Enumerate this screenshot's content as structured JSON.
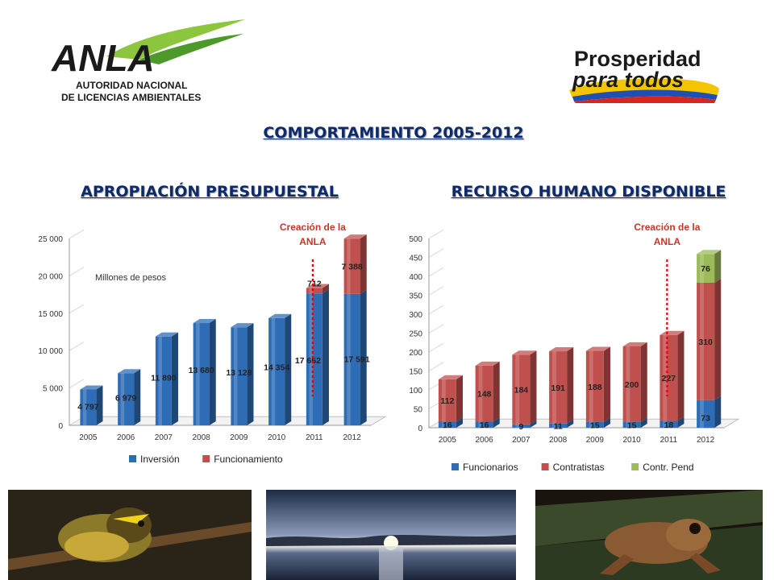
{
  "logos": {
    "anla": {
      "wordmark": "ANLA",
      "line1": "AUTORIDAD NACIONAL",
      "line2": "DE LICENCIAS AMBIENTALES"
    },
    "prosperidad": {
      "line1": "Prosperidad",
      "line2": "para todos"
    }
  },
  "header": {
    "title": "COMPORTAMIENTO 2005-2012"
  },
  "colors": {
    "blue": "#2e6db6",
    "red": "#c0504d",
    "green": "#9bbb59",
    "title": "#0d2a6b",
    "annotation": "#c0392b"
  },
  "chart_data": [
    {
      "type": "bar",
      "stacked": true,
      "title": "APROPIACIÓN PRESUPUESTAL",
      "annotation_text": "Millones de pesos",
      "marker_label": "Creación de la ANLA",
      "marker_category": "2011",
      "categories": [
        "2005",
        "2006",
        "2007",
        "2008",
        "2009",
        "2010",
        "2011",
        "2012"
      ],
      "series": [
        {
          "name": "Inversión",
          "color": "#2e6db6",
          "values": [
            4797,
            6979,
            11890,
            13680,
            13128,
            14354,
            17652,
            17591
          ],
          "labels": [
            "4 797",
            "6 979",
            "11 890",
            "13 680",
            "13 128",
            "14 354",
            "17 652",
            "17 591"
          ]
        },
        {
          "name": "Funcionamiento",
          "color": "#c0504d",
          "values": [
            0,
            0,
            0,
            0,
            0,
            0,
            712,
            7388
          ],
          "labels": [
            "",
            "",
            "",
            "",
            "",
            "",
            "712",
            "7 388"
          ]
        }
      ],
      "ylim": [
        0,
        25000
      ],
      "yticks": [
        0,
        5000,
        10000,
        15000,
        20000,
        25000
      ],
      "ytick_labels": [
        "0",
        "5 000",
        "10 000",
        "15 000",
        "20 000",
        "25 000"
      ],
      "legend": "bottom"
    },
    {
      "type": "bar",
      "stacked": true,
      "title": "RECURSO HUMANO DISPONIBLE",
      "marker_label": "Creación de la ANLA",
      "marker_category": "2011",
      "categories": [
        "2005",
        "2006",
        "2007",
        "2008",
        "2009",
        "2010",
        "2011",
        "2012"
      ],
      "series": [
        {
          "name": "Funcionarios",
          "color": "#2e6db6",
          "values": [
            16,
            16,
            9,
            11,
            15,
            15,
            18,
            73
          ],
          "labels": [
            "16",
            "16",
            "9",
            "11",
            "15",
            "15",
            "18",
            "73"
          ]
        },
        {
          "name": "Contratistas",
          "color": "#c0504d",
          "values": [
            112,
            148,
            184,
            191,
            188,
            200,
            227,
            310
          ],
          "labels": [
            "112",
            "148",
            "184",
            "191",
            "188",
            "200",
            "227",
            "310"
          ]
        },
        {
          "name": "Contr. Pend",
          "color": "#9bbb59",
          "values": [
            0,
            0,
            0,
            0,
            0,
            0,
            0,
            76
          ],
          "labels": [
            "",
            "",
            "",
            "",
            "",
            "",
            "",
            "76"
          ]
        }
      ],
      "ylim": [
        0,
        500
      ],
      "yticks": [
        0,
        50,
        100,
        150,
        200,
        250,
        300,
        350,
        400,
        450,
        500
      ],
      "ytick_labels": [
        "0",
        "50",
        "100",
        "150",
        "200",
        "250",
        "300",
        "350",
        "400",
        "450",
        "500"
      ],
      "legend": "bottom"
    }
  ]
}
